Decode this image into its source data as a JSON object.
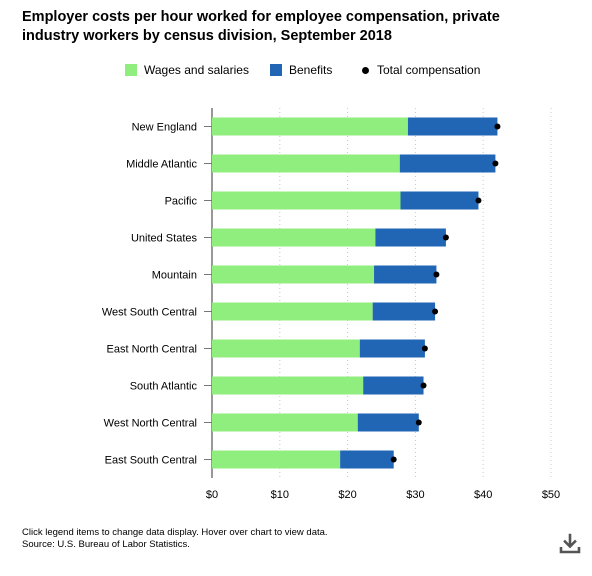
{
  "title": "Employer costs per hour worked for employee compensation, private industry workers by census division, September 2018",
  "legend": {
    "wages": "Wages and salaries",
    "benefits": "Benefits",
    "total": "Total compensation"
  },
  "footer": {
    "line1": "Click legend items to change data display. Hover over chart to view data.",
    "line2": "Source: U.S. Bureau of Labor Statistics."
  },
  "icons": {
    "download": "download-icon"
  },
  "colors": {
    "wages": "#90ee7e",
    "benefits": "#2066b4",
    "total": "#000000"
  },
  "chart_data": {
    "type": "bar",
    "orientation": "horizontal",
    "stacked": true,
    "categories": [
      "New England",
      "Middle Atlantic",
      "Pacific",
      "United States",
      "Mountain",
      "West South Central",
      "East North Central",
      "South Atlantic",
      "West North Central",
      "East South Central"
    ],
    "series": [
      {
        "name": "Wages and salaries",
        "values": [
          28.9,
          27.7,
          27.8,
          24.1,
          23.9,
          23.7,
          21.8,
          22.3,
          21.5,
          18.9
        ]
      },
      {
        "name": "Benefits",
        "values": [
          13.2,
          14.1,
          11.5,
          10.4,
          9.2,
          9.2,
          9.6,
          8.9,
          9.0,
          7.9
        ]
      }
    ],
    "total": {
      "name": "Total compensation",
      "values": [
        42.1,
        41.8,
        39.3,
        34.5,
        33.1,
        32.9,
        31.4,
        31.2,
        30.5,
        26.8
      ]
    },
    "xticks": [
      "$0",
      "$10",
      "$20",
      "$30",
      "$40",
      "$50"
    ],
    "xlim": [
      0,
      50
    ],
    "grid": true,
    "legend_position": "top"
  }
}
